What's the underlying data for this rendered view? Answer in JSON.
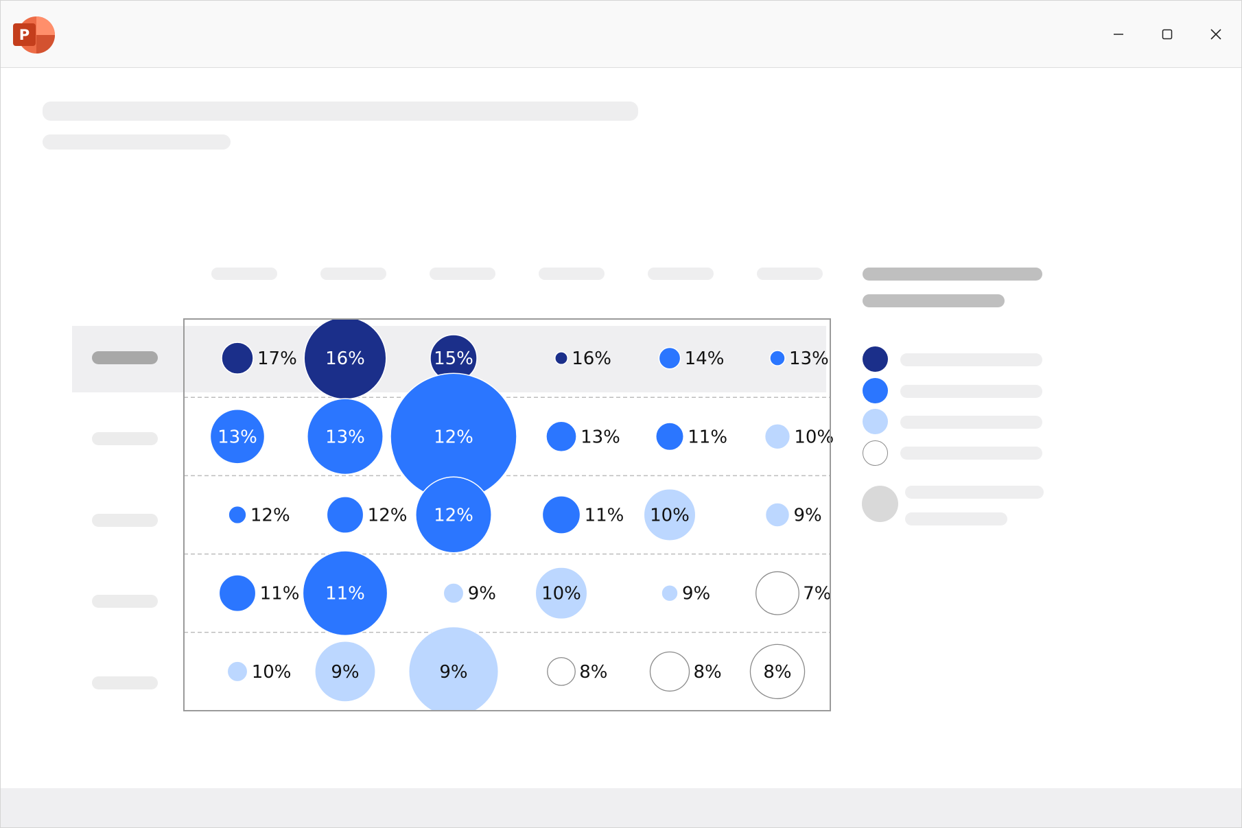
{
  "window": {
    "app_icon": "powerpoint-icon",
    "app_icon_letter": "P",
    "controls": [
      "minimize-icon",
      "maximize-icon",
      "close-icon"
    ]
  },
  "colors": {
    "dark_navy": "#1b2f8a",
    "blue": "#2b76ff",
    "light_blue": "#bcd7ff",
    "white_outline": "#ffffff"
  },
  "legend": {
    "items": [
      {
        "color": "#1b2f8a"
      },
      {
        "color": "#2b76ff"
      },
      {
        "color": "#bcd7ff"
      },
      {
        "color": "#ffffff"
      }
    ],
    "size_indicator_color": "#d9d9d9"
  },
  "chart_data": {
    "type": "bubble-matrix",
    "rows": 5,
    "columns": 6,
    "highlighted_row": 0,
    "cells": [
      [
        {
          "label": "17%",
          "size": 0.25,
          "color": "dark"
        },
        {
          "label": "16%",
          "size": 0.65,
          "color": "dark"
        },
        {
          "label": "15%",
          "size": 0.37,
          "color": "dark"
        },
        {
          "label": "16%",
          "size": 0.1,
          "color": "dark"
        },
        {
          "label": "14%",
          "size": 0.17,
          "color": "blue"
        },
        {
          "label": "13%",
          "size": 0.12,
          "color": "blue"
        }
      ],
      [
        {
          "label": "13%",
          "size": 0.43,
          "color": "blue"
        },
        {
          "label": "13%",
          "size": 0.6,
          "color": "blue"
        },
        {
          "label": "12%",
          "size": 1.0,
          "color": "blue"
        },
        {
          "label": "13%",
          "size": 0.24,
          "color": "blue"
        },
        {
          "label": "11%",
          "size": 0.22,
          "color": "blue"
        },
        {
          "label": "10%",
          "size": 0.2,
          "color": "light"
        }
      ],
      [
        {
          "label": "12%",
          "size": 0.14,
          "color": "blue"
        },
        {
          "label": "12%",
          "size": 0.29,
          "color": "blue"
        },
        {
          "label": "12%",
          "size": 0.6,
          "color": "blue"
        },
        {
          "label": "11%",
          "size": 0.3,
          "color": "blue"
        },
        {
          "label": "10%",
          "size": 0.41,
          "color": "light"
        },
        {
          "label": "9%",
          "size": 0.19,
          "color": "light"
        }
      ],
      [
        {
          "label": "11%",
          "size": 0.29,
          "color": "blue"
        },
        {
          "label": "11%",
          "size": 0.67,
          "color": "blue"
        },
        {
          "label": "9%",
          "size": 0.16,
          "color": "light"
        },
        {
          "label": "10%",
          "size": 0.41,
          "color": "light"
        },
        {
          "label": "9%",
          "size": 0.13,
          "color": "light"
        },
        {
          "label": "7%",
          "size": 0.34,
          "color": "white"
        }
      ],
      [
        {
          "label": "10%",
          "size": 0.16,
          "color": "light"
        },
        {
          "label": "9%",
          "size": 0.48,
          "color": "light"
        },
        {
          "label": "9%",
          "size": 0.71,
          "color": "light"
        },
        {
          "label": "8%",
          "size": 0.22,
          "color": "white"
        },
        {
          "label": "8%",
          "size": 0.31,
          "color": "white"
        },
        {
          "label": "8%",
          "size": 0.43,
          "color": "white"
        }
      ]
    ]
  }
}
